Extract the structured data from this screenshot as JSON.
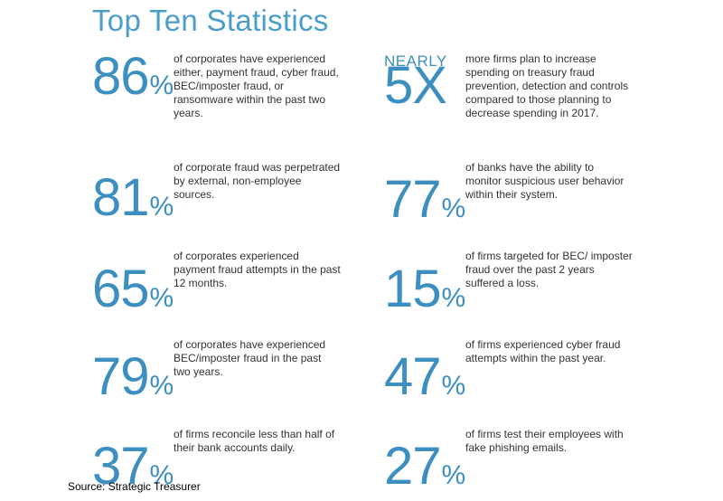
{
  "title": "Top Ten Statistics",
  "left_column": [
    {
      "value": "86",
      "unit": "%",
      "text": "of corporates have experienced either, payment fraud, cyber fraud, BEC/imposter fraud, or ransomware within the past two years."
    },
    {
      "value": "81",
      "unit": "%",
      "text": "of corporate fraud was perpetrated by external, non-employee sources."
    },
    {
      "value": "65",
      "unit": "%",
      "text": "of corporates experienced payment fraud attempts in the past 12 months."
    },
    {
      "value": "79",
      "unit": "%",
      "text": "of corporates have experienced BEC/imposter fraud in the past two years."
    },
    {
      "value": "37",
      "unit": "%",
      "text": "of firms reconcile less than half of their bank accounts daily."
    }
  ],
  "right_column": [
    {
      "prefix": "NEARLY",
      "value": "5X",
      "unit": "",
      "text": "more firms plan to increase spending on treasury fraud prevention, detection and controls compared to those planning to decrease spending in 2017."
    },
    {
      "value": "77",
      "unit": "%",
      "text": "of banks have the ability to monitor suspicious user behavior within their system."
    },
    {
      "value": "15",
      "unit": "%",
      "text": "of firms targeted for BEC/ imposter fraud over the past 2 years suffered a loss."
    },
    {
      "value": "47",
      "unit": "%",
      "text": "of firms experienced cyber fraud attempts within the past year."
    },
    {
      "value": "27",
      "unit": "%",
      "text": "of firms test their employees with fake phishing emails."
    }
  ],
  "source": "Source: Strategic Treasurer",
  "colors": {
    "accent": "#3c8fc0",
    "title": "#4a9ec9",
    "body_text": "#333333"
  }
}
